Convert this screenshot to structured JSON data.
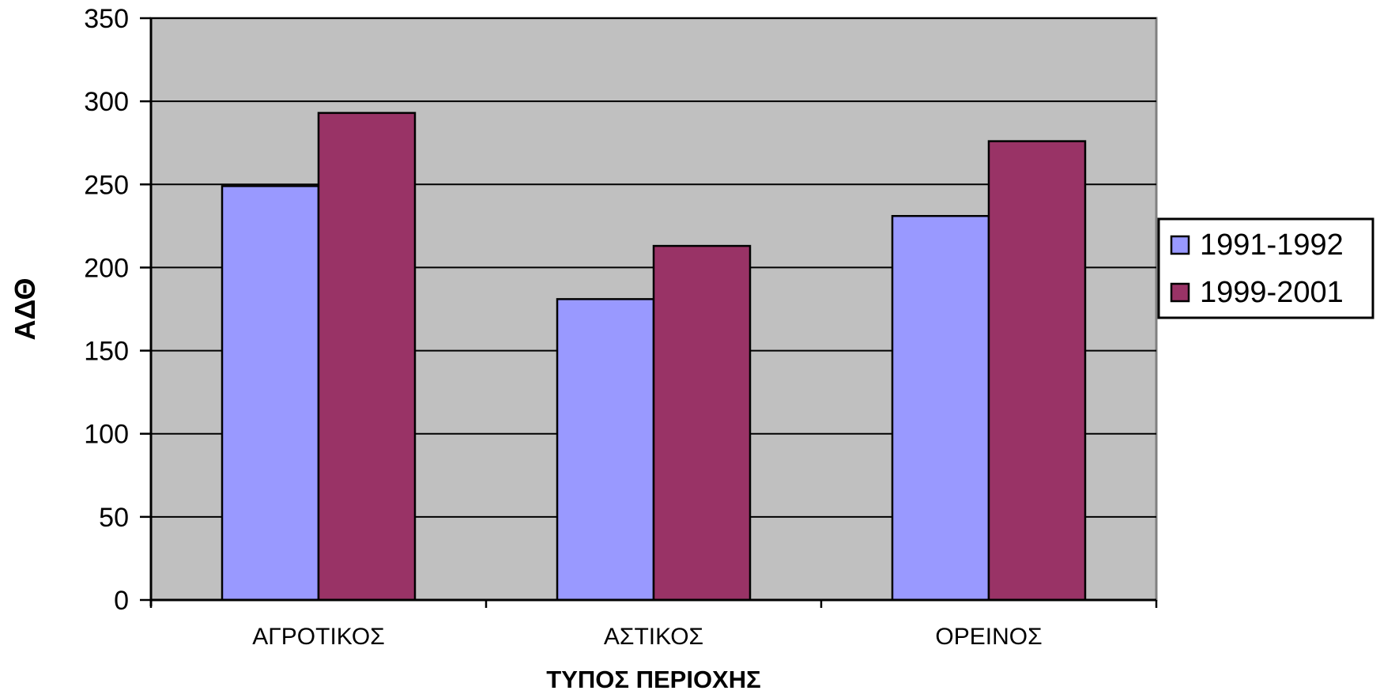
{
  "chart_data": {
    "type": "bar",
    "title": "",
    "xlabel": "ΤΥΠΟΣ ΠΕΡΙΟΧΗΣ",
    "ylabel": "ΑΔΘ",
    "categories": [
      "ΑΓΡΟΤΙΚΟΣ",
      "ΑΣΤΙΚΟΣ",
      "ΟΡΕΙΝΟΣ"
    ],
    "series": [
      {
        "name": "1991-1992",
        "values": [
          249,
          181,
          231
        ],
        "color": "#9999ff"
      },
      {
        "name": "1999-2001",
        "values": [
          293,
          213,
          276
        ],
        "color": "#993366"
      }
    ],
    "ylim": [
      0,
      350
    ],
    "yticks": [
      0,
      50,
      100,
      150,
      200,
      250,
      300,
      350
    ],
    "grid": true,
    "legend_position": "right",
    "plot_background": "#c0c0c0"
  }
}
